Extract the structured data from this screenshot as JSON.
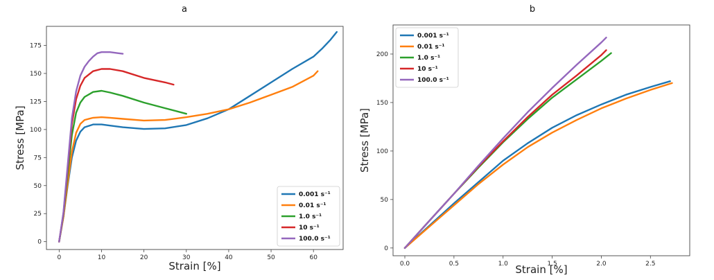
{
  "chart_data": [
    {
      "panel": "a",
      "type": "line",
      "xlabel": "Strain [%]",
      "ylabel": "Stress [MPa]",
      "xlim": [
        -3,
        67
      ],
      "ylim": [
        -7,
        192
      ],
      "xticks": [
        0,
        10,
        20,
        30,
        40,
        50,
        60
      ],
      "yticks": [
        0,
        25,
        50,
        75,
        100,
        125,
        150,
        175
      ],
      "legend_position": "lower-right",
      "series": [
        {
          "name": "0.001",
          "label": "0.001 s⁻¹",
          "color": "#1f77b4",
          "x": [
            0,
            1,
            2,
            3,
            4,
            5,
            6,
            8,
            10,
            12,
            15,
            20,
            25,
            30,
            35,
            40,
            45,
            50,
            55,
            60,
            62,
            64,
            65.5
          ],
          "y": [
            0,
            22,
            50,
            75,
            90,
            98,
            102,
            104.5,
            104.5,
            103.5,
            102,
            100.5,
            101,
            104,
            110,
            118,
            130,
            142,
            154,
            165,
            172,
            180,
            187
          ]
        },
        {
          "name": "0.01",
          "label": "0.01 s⁻¹",
          "color": "#ff7f0e",
          "x": [
            0,
            1,
            2,
            3,
            4,
            5,
            6,
            8,
            10,
            12,
            15,
            20,
            25,
            30,
            35,
            40,
            45,
            50,
            55,
            60,
            61
          ],
          "y": [
            0,
            22,
            52,
            80,
            97,
            105,
            108.5,
            110.5,
            111,
            110.5,
            109.5,
            108,
            108.5,
            111,
            114,
            118,
            124,
            131,
            138,
            148,
            152
          ]
        },
        {
          "name": "1.0",
          "label": "1.0 s⁻¹",
          "color": "#2ca02c",
          "x": [
            0,
            1,
            2,
            3,
            4,
            5,
            6,
            8,
            10,
            12,
            15,
            20,
            25,
            30
          ],
          "y": [
            0,
            24,
            60,
            95,
            115,
            124,
            129,
            133.5,
            134.5,
            133,
            130,
            124,
            119,
            114
          ]
        },
        {
          "name": "10",
          "label": "10 s⁻¹",
          "color": "#d62728",
          "x": [
            0,
            1,
            2,
            3,
            4,
            5,
            6,
            8,
            10,
            12,
            15,
            20,
            25,
            27
          ],
          "y": [
            0,
            25,
            65,
            105,
            127,
            139,
            146,
            152,
            154,
            154,
            152,
            146,
            142,
            140
          ]
        },
        {
          "name": "100.0",
          "label": "100.0 s⁻¹",
          "color": "#9467bd",
          "x": [
            0,
            1,
            2,
            3,
            4,
            5,
            6,
            7,
            8,
            9,
            10,
            12,
            14,
            15
          ],
          "y": [
            0,
            26,
            68,
            110,
            134,
            148,
            156,
            161,
            165,
            168,
            169,
            169,
            168,
            167.5
          ]
        }
      ]
    },
    {
      "panel": "b",
      "type": "line",
      "xlabel": "Strain [%]",
      "ylabel": "Stress [MPa]",
      "xlim": [
        -0.12,
        2.9
      ],
      "ylim": [
        -8,
        230
      ],
      "xticks": [
        0.0,
        0.5,
        1.0,
        1.5,
        2.0,
        2.5
      ],
      "yticks": [
        0,
        50,
        100,
        150,
        200
      ],
      "legend_position": "upper-left",
      "series": [
        {
          "name": "0.001",
          "label": "0.001 s⁻¹",
          "color": "#1f77b4",
          "x": [
            0,
            0.25,
            0.5,
            0.75,
            1.0,
            1.25,
            1.5,
            1.75,
            2.0,
            2.25,
            2.5,
            2.7
          ],
          "y": [
            0,
            23,
            46,
            68,
            90,
            108,
            124,
            137,
            148,
            158,
            166,
            172
          ]
        },
        {
          "name": "0.01",
          "label": "0.01 s⁻¹",
          "color": "#ff7f0e",
          "x": [
            0,
            0.25,
            0.5,
            0.75,
            1.0,
            1.25,
            1.5,
            1.75,
            2.0,
            2.25,
            2.5,
            2.72
          ],
          "y": [
            0,
            22,
            44,
            66,
            86,
            104,
            119,
            132,
            144,
            154,
            163,
            170
          ]
        },
        {
          "name": "1.0",
          "label": "1.0 s⁻¹",
          "color": "#2ca02c",
          "x": [
            0,
            0.25,
            0.5,
            0.75,
            1.0,
            1.25,
            1.5,
            1.75,
            2.0,
            2.1
          ],
          "y": [
            0,
            28,
            56,
            83,
            109,
            133,
            155,
            174,
            193,
            201
          ]
        },
        {
          "name": "10",
          "label": "10 s⁻¹",
          "color": "#d62728",
          "x": [
            0,
            0.25,
            0.5,
            0.75,
            1.0,
            1.25,
            1.5,
            1.75,
            2.0,
            2.05
          ],
          "y": [
            0,
            28,
            56,
            84,
            110,
            135,
            158,
            178,
            199,
            204
          ]
        },
        {
          "name": "100.0",
          "label": "100.0 s⁻¹",
          "color": "#9467bd",
          "x": [
            0,
            0.25,
            0.5,
            0.75,
            1.0,
            1.25,
            1.5,
            1.75,
            2.0,
            2.05
          ],
          "y": [
            0,
            28,
            56,
            85,
            113,
            140,
            165,
            189,
            212,
            217
          ]
        }
      ]
    }
  ]
}
